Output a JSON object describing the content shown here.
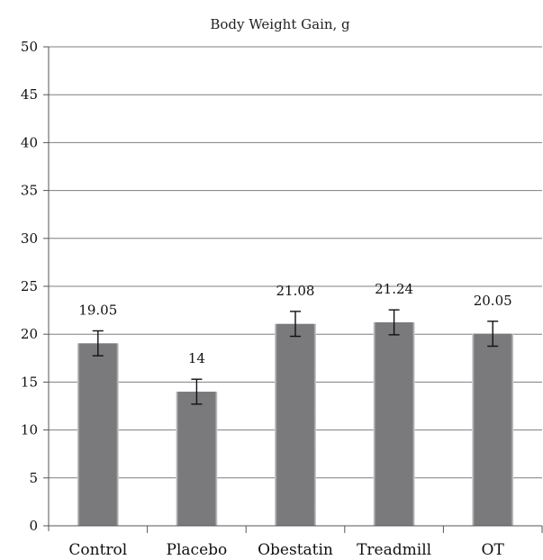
{
  "chart_data": {
    "type": "bar",
    "title": "Body Weight Gain, g",
    "categories": [
      "Control",
      "Placebo",
      "Obestatin",
      "Treadmill",
      "OT"
    ],
    "values": [
      19.05,
      14,
      21.08,
      21.24,
      20.05
    ],
    "data_labels": [
      "19.05",
      "14",
      "21.08",
      "21.24",
      "20.05"
    ],
    "error": [
      1.3,
      1.3,
      1.3,
      1.3,
      1.3
    ],
    "ylim": [
      0,
      50
    ],
    "yticks": [
      0,
      5,
      10,
      15,
      20,
      25,
      30,
      35,
      40,
      45,
      50
    ],
    "ytick_labels": [
      "0",
      "5",
      "10",
      "15",
      "20",
      "25",
      "30",
      "35",
      "40",
      "45",
      "50"
    ],
    "xlabel": "",
    "ylabel": "",
    "grid": true,
    "bar_color": "#7a7a7c",
    "bar_highlight_color": "#d9d9db"
  }
}
